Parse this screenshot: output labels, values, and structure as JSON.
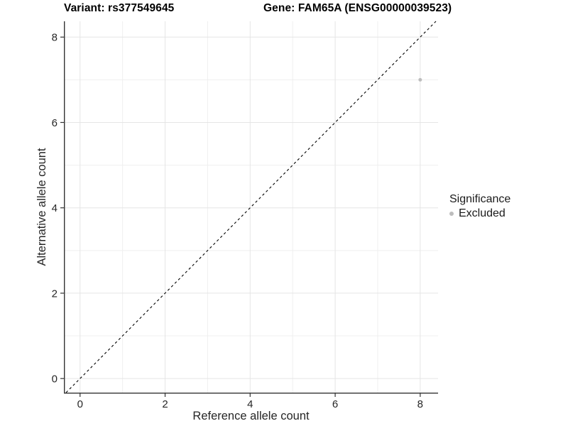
{
  "titles": {
    "variant": "Variant: rs377549645",
    "gene": "Gene: FAM65A (ENSG00000039523)"
  },
  "chart_data": {
    "type": "scatter",
    "title_left": "Variant: rs377549645",
    "title_right": "Gene: FAM65A (ENSG00000039523)",
    "xlabel": "Reference allele count",
    "ylabel": "Alternative allele count",
    "xlim": [
      -0.38,
      8.42
    ],
    "ylim": [
      -0.33,
      8.37
    ],
    "x_major_ticks": [
      0,
      2,
      4,
      6,
      8
    ],
    "y_major_ticks": [
      0,
      2,
      4,
      6,
      8
    ],
    "x_minor_gridlines": [
      1,
      3,
      5,
      7
    ],
    "y_minor_gridlines": [
      1,
      3,
      5,
      7
    ],
    "grid": "on",
    "series": [
      {
        "name": "Excluded",
        "color": "#bdbdbd",
        "points": [
          {
            "x": 8,
            "y": 7
          }
        ]
      }
    ],
    "reference_line": {
      "equation": "y = x",
      "style": "dashed",
      "color": "#000000"
    },
    "legend": {
      "title": "Significance",
      "position": "right",
      "entries": [
        "Excluded"
      ]
    }
  },
  "colors": {
    "background": "#ffffff",
    "major_grid": "#e5e5e5",
    "minor_grid": "#efefef",
    "axis": "#333333",
    "tick_text": "#262626",
    "point": "#bdbdbd",
    "dashed_line": "#000000"
  }
}
